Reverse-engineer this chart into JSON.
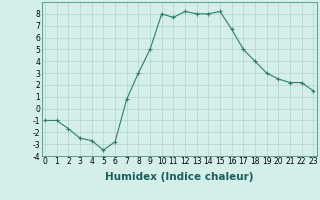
{
  "x": [
    0,
    1,
    2,
    3,
    4,
    5,
    6,
    7,
    8,
    9,
    10,
    11,
    12,
    13,
    14,
    15,
    16,
    17,
    18,
    19,
    20,
    21,
    22,
    23
  ],
  "y": [
    -1,
    -1,
    -1.7,
    -2.5,
    -2.7,
    -3.5,
    -2.8,
    0.8,
    3.0,
    5.0,
    8.0,
    7.7,
    8.2,
    8.0,
    8.0,
    8.2,
    6.7,
    5.0,
    4.0,
    3.0,
    2.5,
    2.2,
    2.2,
    1.5
  ],
  "xlabel": "Humidex (Indice chaleur)",
  "ylim": [
    -4,
    9
  ],
  "xlim": [
    -0.3,
    23.3
  ],
  "yticks": [
    -4,
    -3,
    -2,
    -1,
    0,
    1,
    2,
    3,
    4,
    5,
    6,
    7,
    8
  ],
  "xticks": [
    0,
    1,
    2,
    3,
    4,
    5,
    6,
    7,
    8,
    9,
    10,
    11,
    12,
    13,
    14,
    15,
    16,
    17,
    18,
    19,
    20,
    21,
    22,
    23
  ],
  "line_color": "#2e7d6e",
  "bg_color": "#d4eeea",
  "grid_color": "#aaccc8",
  "tick_fontsize": 5.5,
  "xlabel_fontsize": 7.5
}
